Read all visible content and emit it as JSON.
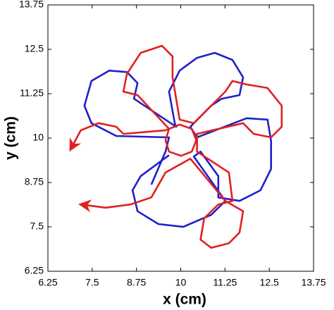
{
  "chart_data": {
    "type": "line",
    "x_label": "x (cm)",
    "y_label": "y (cm)",
    "xlim": [
      6.25,
      13.75
    ],
    "ylim": [
      6.25,
      13.75
    ],
    "xticks": [
      6.25,
      7.5,
      8.75,
      10,
      11.25,
      12.5,
      13.75
    ],
    "yticks": [
      6.25,
      7.5,
      8.75,
      10,
      11.25,
      12.5,
      13.75
    ],
    "series": [
      {
        "color": "#2020cc",
        "x": [
          9.17,
          9.57,
          9.67,
          8.18,
          7.48,
          7.28,
          7.48,
          7.98,
          8.48,
          8.78,
          8.68,
          9.87,
          9.83,
          9.67,
          9.97,
          10.46,
          10.96,
          11.46,
          11.76,
          11.66,
          11.16,
          10.86,
          10.27,
          10.46,
          11.86,
          12.45,
          12.55,
          12.55,
          12.25,
          11.66,
          11.06,
          11.06,
          10.56,
          10.37,
          11.26,
          10.86,
          10.07,
          9.37,
          8.78,
          8.64,
          8.87,
          9.67
        ],
        "values": [
          8.69,
          9.62,
          10.02,
          10.06,
          10.42,
          10.91,
          11.61,
          11.9,
          11.86,
          11.55,
          11.11,
          10.32,
          10.42,
          11.31,
          11.9,
          12.26,
          12.4,
          12.2,
          11.71,
          11.21,
          11.11,
          10.91,
          10.32,
          10.02,
          10.56,
          10.52,
          9.92,
          9.13,
          8.53,
          8.23,
          8.33,
          8.93,
          9.62,
          9.48,
          8.23,
          7.84,
          7.5,
          7.58,
          7.94,
          8.53,
          8.93,
          9.52
        ]
      },
      {
        "color": "#e02020",
        "x": [
          6.89,
          7.18,
          7.68,
          8.18,
          8.38,
          9.57,
          9.97,
          10.31,
          10.44,
          10.31,
          10.01,
          9.67,
          9.57,
          9.67,
          8.78,
          8.38,
          8.48,
          8.87,
          9.47,
          9.77,
          9.77,
          9.97,
          10.37,
          11.26,
          11.46,
          11.86,
          12.45,
          12.85,
          12.85,
          12.55,
          12.06,
          11.76,
          10.46,
          10.46,
          11.36,
          11.46,
          11.06,
          10.66,
          10.56,
          10.86,
          11.36,
          11.66,
          11.76,
          11.26,
          10.27,
          9.57,
          9.17,
          8.58,
          7.88,
          7.18
        ],
        "values": [
          9.68,
          10.22,
          10.42,
          10.32,
          10.12,
          10.22,
          10.38,
          10.26,
          9.94,
          9.62,
          9.5,
          9.62,
          9.94,
          10.26,
          11.21,
          11.31,
          11.81,
          12.4,
          12.6,
          12.3,
          11.71,
          10.52,
          10.42,
          11.31,
          11.61,
          11.51,
          11.41,
          10.91,
          10.32,
          10.02,
          10.12,
          10.42,
          10.12,
          9.62,
          9.03,
          8.23,
          8.13,
          7.74,
          7.14,
          6.91,
          7.04,
          7.34,
          7.94,
          8.23,
          9.42,
          9.03,
          8.33,
          8.13,
          8.04,
          8.13
        ]
      }
    ]
  }
}
